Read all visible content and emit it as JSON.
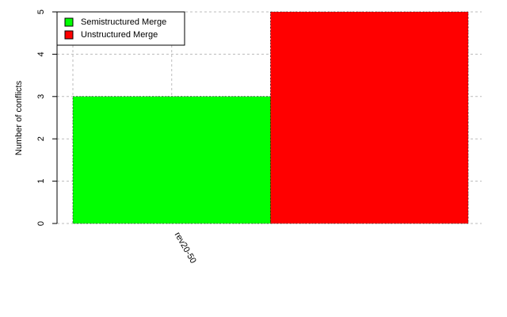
{
  "chart_data": {
    "type": "bar",
    "y_label": "Number of conflicts",
    "categories": [
      "rev20-50"
    ],
    "series": [
      {
        "name": "Semistructured Merge",
        "color": "#00ff00",
        "values": [
          3
        ]
      },
      {
        "name": "Unstructured Merge",
        "color": "#ff0000",
        "values": [
          5
        ]
      }
    ],
    "ylim": [
      0,
      5
    ],
    "yticks": [
      0,
      1,
      2,
      3,
      4,
      5
    ],
    "grid": true,
    "legend": "top-left"
  }
}
